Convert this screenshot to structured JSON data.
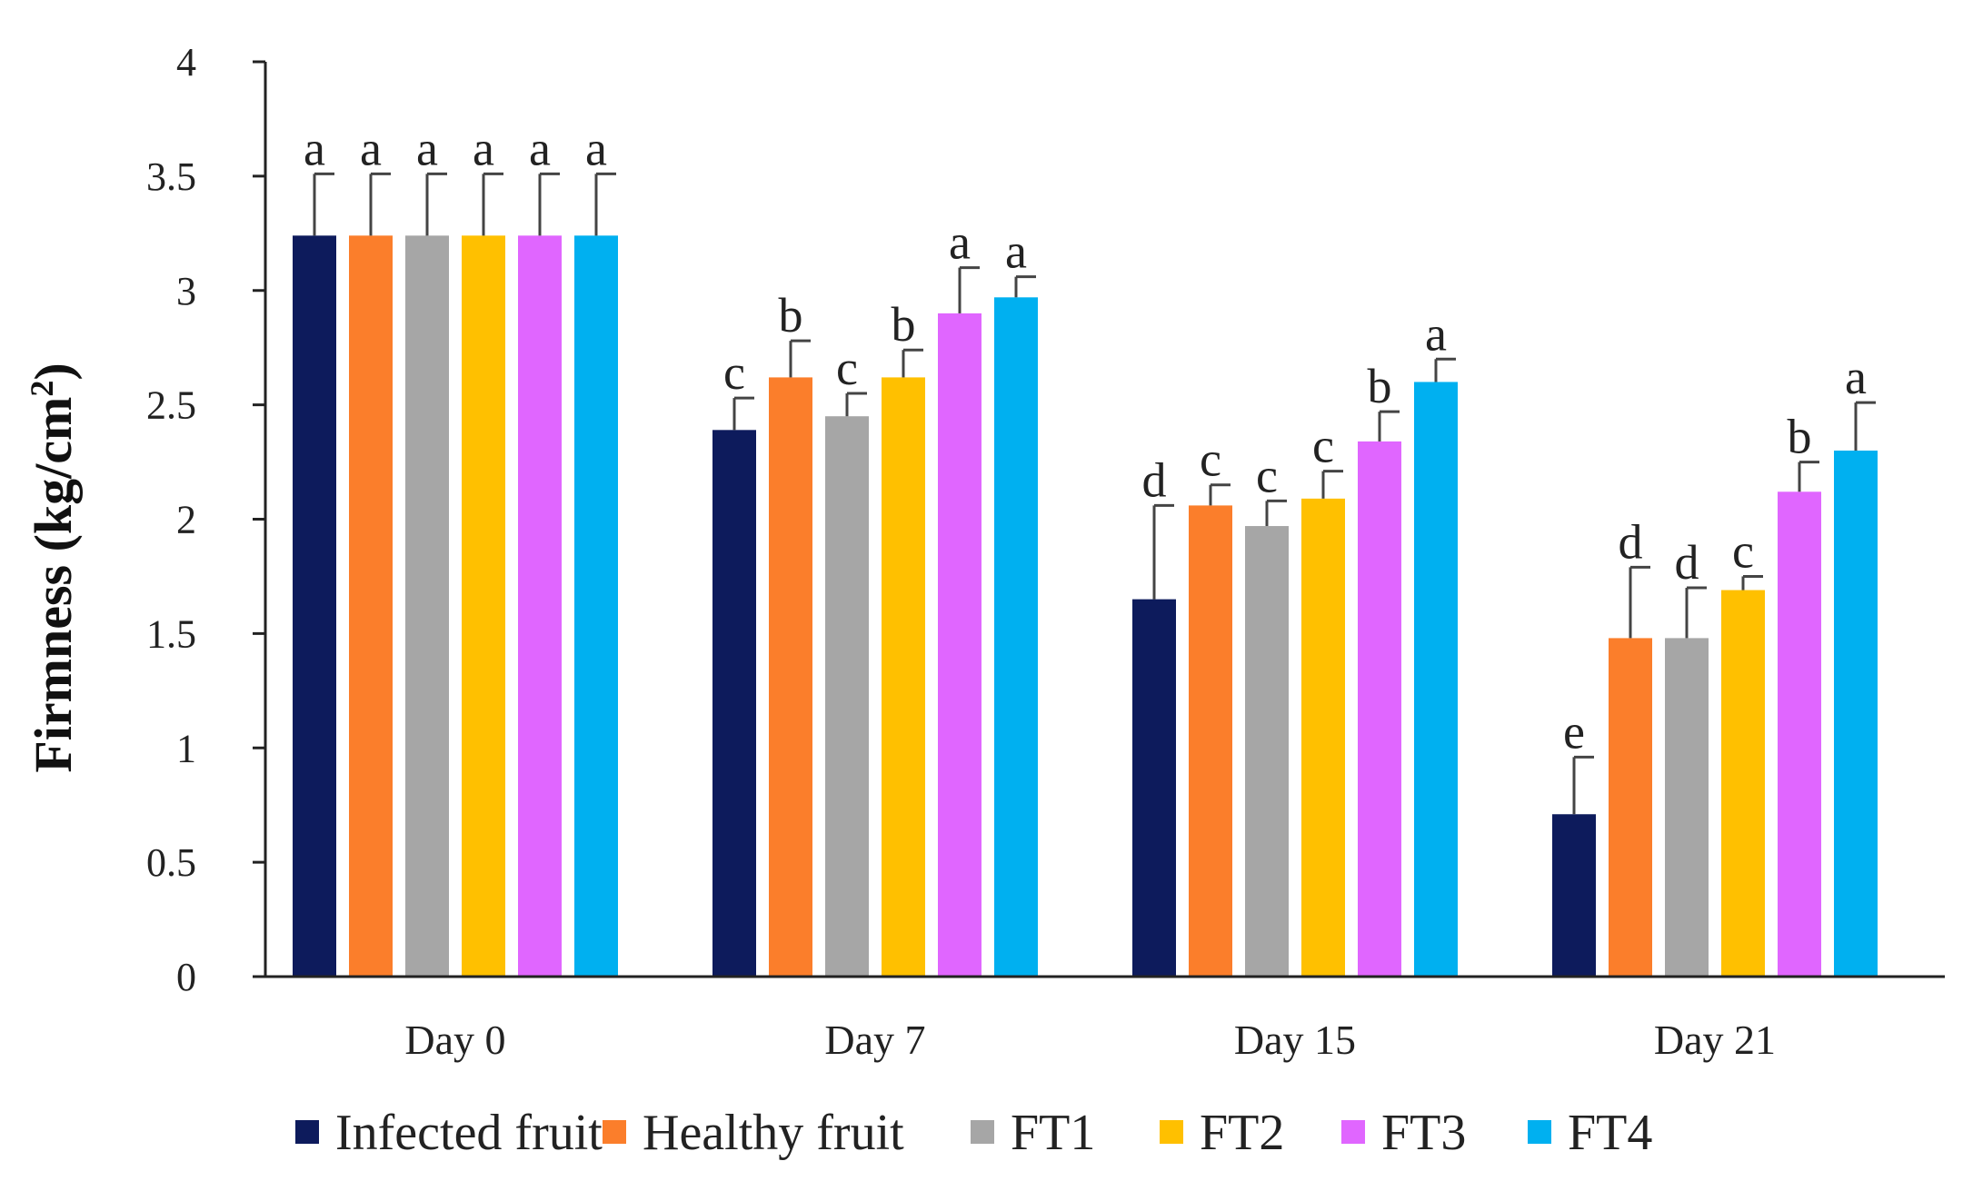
{
  "chart_data": {
    "type": "bar",
    "title": "",
    "xlabel": "",
    "ylabel": "Firmness  (kg/cm²)",
    "ylabel_main": "Firmness  (kg/cm",
    "ylabel_sup": "2",
    "ylabel_end": ")",
    "ylim": [
      0,
      4
    ],
    "yticks": [
      0,
      0.5,
      1,
      1.5,
      2,
      2.5,
      3,
      3.5,
      4
    ],
    "ytick_labels": [
      "0",
      "0.5",
      "1",
      "1.5",
      "2",
      "2.5",
      "3",
      "3.5",
      "4"
    ],
    "grid": false,
    "legend_position": "bottom",
    "categories": [
      "Day 0",
      "Day 7",
      "Day 15",
      "Day 21"
    ],
    "series": [
      {
        "name": "Infected fruit",
        "color": "#0d1b5c",
        "values": [
          3.24,
          2.39,
          1.65,
          0.71
        ],
        "errors": [
          0.27,
          0.14,
          0.41,
          0.25
        ],
        "letters": [
          "a",
          "c",
          "d",
          "e"
        ]
      },
      {
        "name": "Healthy fruit",
        "color": "#fb7e2b",
        "values": [
          3.24,
          2.62,
          2.06,
          1.48
        ],
        "errors": [
          0.27,
          0.16,
          0.09,
          0.31
        ],
        "letters": [
          "a",
          "b",
          "c",
          "d"
        ]
      },
      {
        "name": "FT1",
        "color": "#a6a6a6",
        "values": [
          3.24,
          2.45,
          1.97,
          1.48
        ],
        "errors": [
          0.27,
          0.1,
          0.11,
          0.22
        ],
        "letters": [
          "a",
          "c",
          "c",
          "d"
        ]
      },
      {
        "name": "FT2",
        "color": "#ffc000",
        "values": [
          3.24,
          2.62,
          2.09,
          1.69
        ],
        "errors": [
          0.27,
          0.12,
          0.12,
          0.06
        ],
        "letters": [
          "a",
          "b",
          "c",
          "c"
        ]
      },
      {
        "name": "FT3",
        "color": "#e066ff",
        "values": [
          3.24,
          2.9,
          2.34,
          2.12
        ],
        "errors": [
          0.27,
          0.2,
          0.13,
          0.13
        ],
        "letters": [
          "a",
          "a",
          "b",
          "b"
        ]
      },
      {
        "name": "FT4",
        "color": "#00b0f0",
        "values": [
          3.24,
          2.97,
          2.6,
          2.3
        ],
        "errors": [
          0.27,
          0.09,
          0.1,
          0.21
        ],
        "letters": [
          "a",
          "a",
          "a",
          "a"
        ]
      }
    ]
  }
}
